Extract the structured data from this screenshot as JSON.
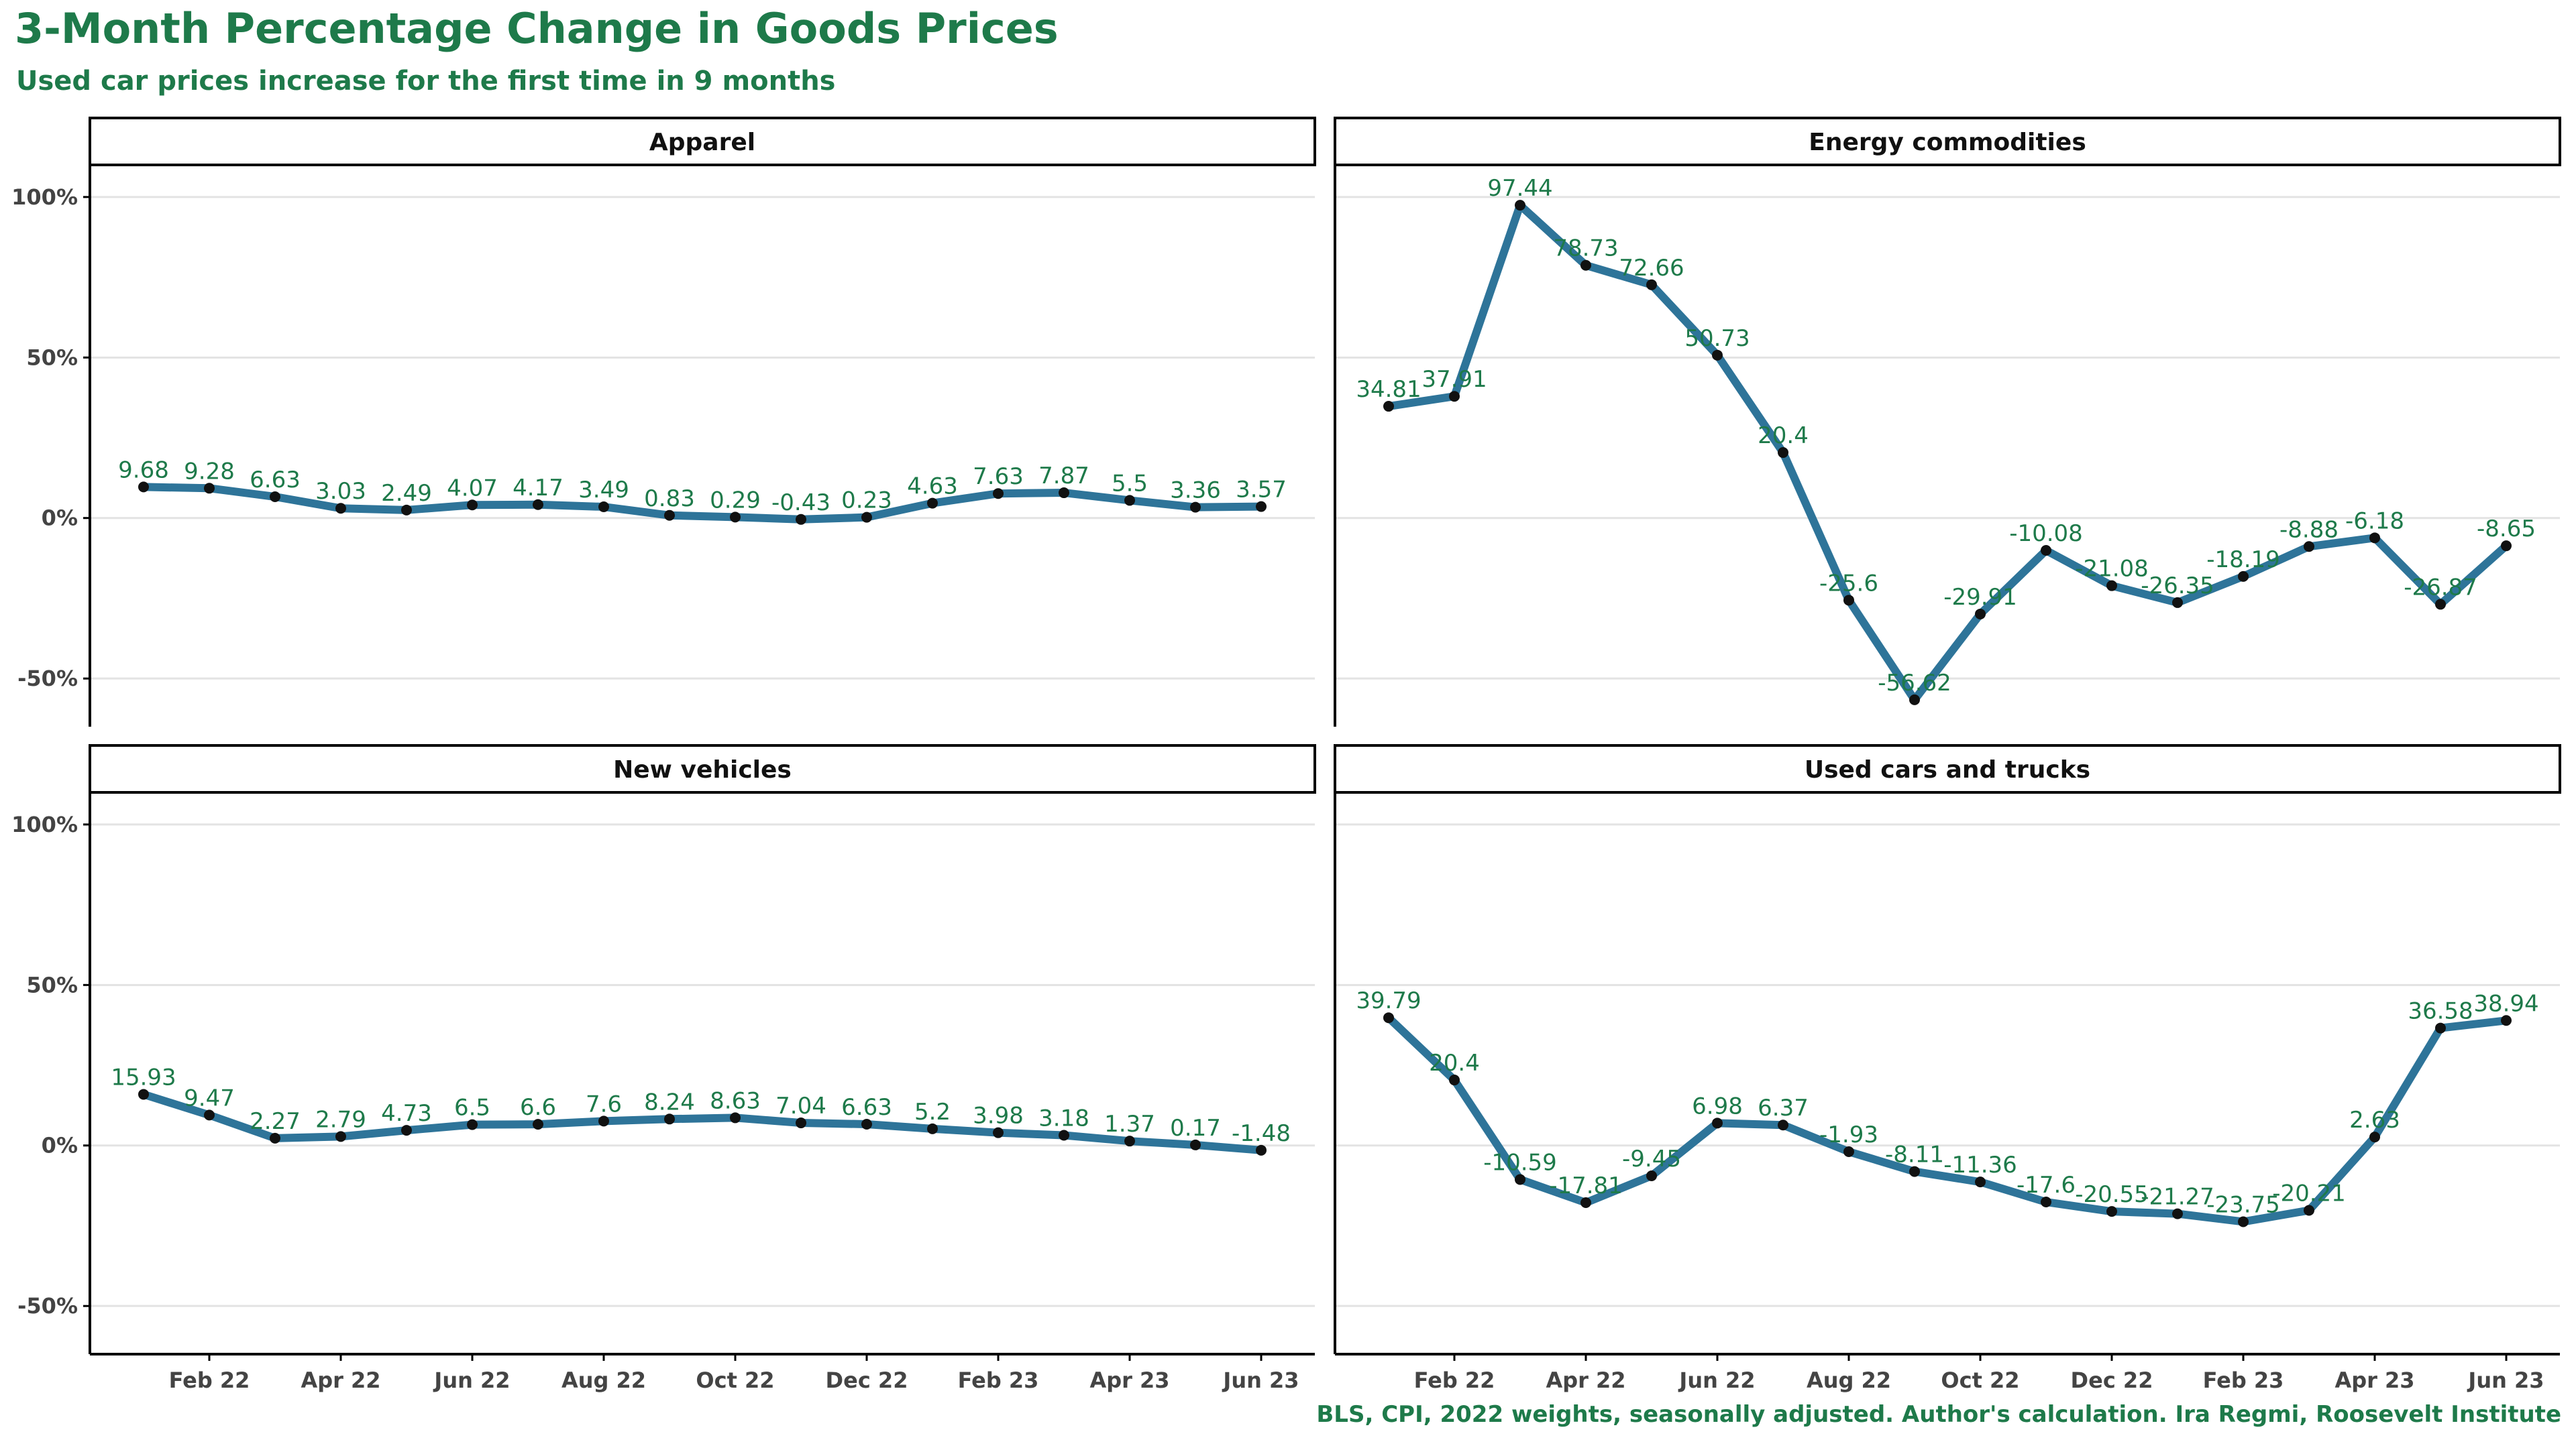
{
  "header": {
    "title": "3-Month Percentage Change in  Goods Prices",
    "subtitle": "Used car prices increase for the first time in 9 months"
  },
  "footer": {
    "caption": "BLS, CPI, 2022 weights, seasonally adjusted. Author's calculation. Ira Regmi, Roosevelt Institute"
  },
  "colors": {
    "line": "#2e7499",
    "point": "#111111",
    "label": "#1e7a4a",
    "grid": "#e3e3e3",
    "axis_text": "#444444"
  },
  "chart_data": {
    "type": "line",
    "facet_layout": "2x2",
    "x": [
      "Jan 22",
      "Feb 22",
      "Mar 22",
      "Apr 22",
      "May 22",
      "Jun 22",
      "Jul 22",
      "Aug 22",
      "Sep 22",
      "Oct 22",
      "Nov 22",
      "Dec 22",
      "Jan 23",
      "Feb 23",
      "Mar 23",
      "Apr 23",
      "May 23",
      "Jun 23"
    ],
    "x_tick_labels": [
      "Feb 22",
      "Apr 22",
      "Jun 22",
      "Aug 22",
      "Oct 22",
      "Dec 22",
      "Feb 23",
      "Apr 23",
      "Jun 23"
    ],
    "y_ticks": [
      100,
      50,
      0,
      -50
    ],
    "y_tick_labels": [
      "100%",
      "50%",
      "0%",
      "-50%"
    ],
    "ylim": [
      -65,
      110
    ],
    "grid": true,
    "panels": [
      {
        "name": "Apparel",
        "values": [
          9.68,
          9.28,
          6.63,
          3.03,
          2.49,
          4.07,
          4.17,
          3.49,
          0.83,
          0.29,
          -0.43,
          0.23,
          4.63,
          7.63,
          7.87,
          5.5,
          3.36,
          3.57
        ],
        "labels": [
          "9.68",
          "9.28",
          "6.63",
          "3.03",
          "2.49",
          "4.07",
          "4.17",
          "3.49",
          "0.83",
          "0.29",
          "-0.43",
          "0.23",
          "4.63",
          "7.63",
          "7.87",
          "5.5",
          "3.36",
          "3.57"
        ]
      },
      {
        "name": "Energy commodities",
        "values": [
          34.81,
          37.91,
          97.44,
          78.73,
          72.66,
          50.73,
          20.4,
          -25.6,
          -56.62,
          -29.91,
          -10.08,
          -21.08,
          -26.35,
          -18.19,
          -8.88,
          -6.18,
          -26.87,
          -8.65
        ],
        "labels": [
          "34.81",
          "37.91",
          "97.44",
          "78.73",
          "72.66",
          "50.73",
          "20.4",
          "-25.6",
          "-56.62",
          "-29.91",
          "-10.08",
          "-21.08",
          "-26.35",
          "-18.19",
          "-8.88",
          "-6.18",
          "-26.87",
          "-8.65"
        ]
      },
      {
        "name": "New vehicles",
        "values": [
          15.93,
          9.47,
          2.27,
          2.79,
          4.73,
          6.5,
          6.6,
          7.6,
          8.24,
          8.63,
          7.04,
          6.63,
          5.2,
          3.98,
          3.18,
          1.37,
          0.17,
          -1.48
        ],
        "labels": [
          "15.93",
          "9.47",
          "2.27",
          "2.79",
          "4.73",
          "6.5",
          "6.6",
          "7.6",
          "8.24",
          "8.63",
          "7.04",
          "6.63",
          "5.2",
          "3.98",
          "3.18",
          "1.37",
          "0.17",
          "-1.48"
        ]
      },
      {
        "name": "Used cars and trucks",
        "values": [
          39.79,
          20.4,
          -10.59,
          -17.81,
          -9.45,
          6.98,
          6.37,
          -1.93,
          -8.11,
          -11.36,
          -17.6,
          -20.55,
          -21.27,
          -23.75,
          -20.21,
          2.63,
          36.58,
          38.94
        ],
        "labels": [
          "39.79",
          "20.4",
          "-10.59",
          "-17.81",
          "-9.45",
          "6.98",
          "6.37",
          "-1.93",
          "-8.11",
          "-11.36",
          "-17.6",
          "-20.55",
          "-21.27",
          "-23.75",
          "-20.21",
          "2.63",
          "36.58",
          "38.94"
        ]
      }
    ]
  }
}
